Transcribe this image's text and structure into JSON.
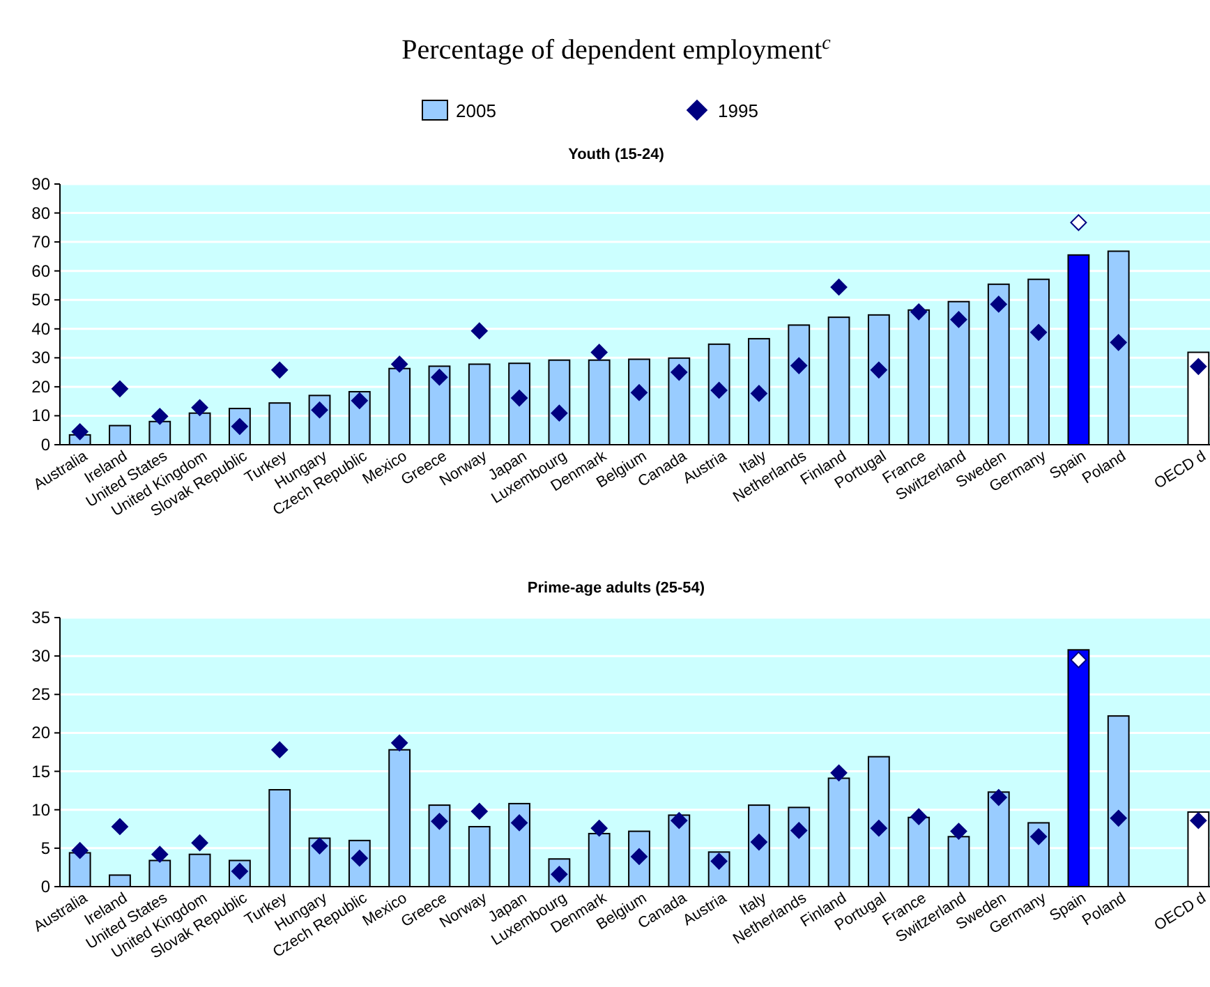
{
  "chart_data": [
    {
      "type": "bar",
      "title": "Percentage of dependent employment$^{c}$",
      "subtitle": "Youth (15-24)",
      "legend": "top",
      "grid": "y",
      "marker": "diamond",
      "categories": [
        "Australia",
        "Ireland",
        "United States",
        "United Kingdom",
        "Slovak Republic",
        "Turkey",
        "Hungary",
        "Czech Republic",
        "Mexico",
        "Greece",
        "Norway",
        "Japan",
        "Luxembourg",
        "Denmark",
        "Belgium",
        "Canada",
        "Austria",
        "Italy",
        "Netherlands",
        "Finland",
        "Portugal",
        "France",
        "Switzerland",
        "Sweden",
        "Germany",
        "Spain",
        "Poland",
        null,
        "OECD  d"
      ],
      "ylim": [
        0,
        90
      ],
      "yticks": [
        0,
        10,
        20,
        30,
        40,
        50,
        60,
        70,
        80,
        90
      ],
      "series": [
        {
          "name": "2005",
          "color": "#99ccff",
          "colors": [
            "#99ccff",
            "#99ccff",
            "#99ccff",
            "#99ccff",
            "#99ccff",
            "#99ccff",
            "#99ccff",
            "#99ccff",
            "#99ccff",
            "#99ccff",
            "#99ccff",
            "#99ccff",
            "#99ccff",
            "#99ccff",
            "#99ccff",
            "#99ccff",
            "#99ccff",
            "#99ccff",
            "#99ccff",
            "#99ccff",
            "#99ccff",
            "#99ccff",
            "#99ccff",
            "#99ccff",
            "#99ccff",
            "#0000ff",
            "#99ccff",
            null,
            "#ffffff"
          ],
          "values": [
            3.4,
            6.6,
            8.0,
            10.9,
            12.5,
            14.4,
            17.0,
            18.3,
            26.3,
            27.1,
            27.8,
            28.1,
            29.2,
            29.2,
            29.5,
            29.9,
            34.7,
            36.6,
            41.3,
            44.0,
            44.8,
            46.5,
            49.4,
            55.4,
            57.1,
            65.5,
            66.8,
            null,
            31.9
          ]
        },
        {
          "name": "1995",
          "type": "scatter",
          "color": "#000080",
          "colors": [
            "#000080",
            "#000080",
            "#000080",
            "#000080",
            "#000080",
            "#000080",
            "#000080",
            "#000080",
            "#000080",
            "#000080",
            "#000080",
            "#000080",
            "#000080",
            "#000080",
            "#000080",
            "#000080",
            "#000080",
            "#000080",
            "#000080",
            "#000080",
            "#000080",
            "#000080",
            "#000080",
            "#000080",
            "#000080",
            "#ffffff",
            "#000080",
            null,
            "#000080"
          ],
          "values": [
            4.5,
            19.3,
            9.8,
            12.8,
            6.3,
            25.8,
            12.0,
            15.2,
            27.8,
            23.3,
            39.3,
            16.1,
            10.9,
            31.9,
            18.0,
            25.0,
            18.8,
            17.7,
            27.3,
            54.4,
            25.8,
            45.9,
            43.2,
            48.5,
            38.8,
            76.7,
            35.3,
            null,
            27.0
          ]
        }
      ]
    },
    {
      "type": "bar",
      "title": "Prime-age adults (25-54)",
      "grid": "y",
      "marker": "diamond",
      "categories": [
        "Australia",
        "Ireland",
        "United States",
        "United Kingdom",
        "Slovak Republic",
        "Turkey",
        "Hungary",
        "Czech Republic",
        "Mexico",
        "Greece",
        "Norway",
        "Japan",
        "Luxembourg",
        "Denmark",
        "Belgium",
        "Canada",
        "Austria",
        "Italy",
        "Netherlands",
        "Finland",
        "Portugal",
        "France",
        "Switzerland",
        "Sweden",
        "Germany",
        "Spain",
        "Poland",
        null,
        "OECD  d"
      ],
      "ylim": [
        0,
        35
      ],
      "yticks": [
        0,
        5,
        10,
        15,
        20,
        25,
        30,
        35
      ],
      "series": [
        {
          "colors": [
            "#99ccff",
            "#99ccff",
            "#99ccff",
            "#99ccff",
            "#99ccff",
            "#99ccff",
            "#99ccff",
            "#99ccff",
            "#99ccff",
            "#99ccff",
            "#99ccff",
            "#99ccff",
            "#99ccff",
            "#99ccff",
            "#99ccff",
            "#99ccff",
            "#99ccff",
            "#99ccff",
            "#99ccff",
            "#99ccff",
            "#99ccff",
            "#99ccff",
            "#99ccff",
            "#99ccff",
            "#99ccff",
            "#0000ff",
            "#99ccff",
            null,
            "#ffffff"
          ],
          "values": [
            4.4,
            1.5,
            3.4,
            4.2,
            3.4,
            12.6,
            6.3,
            6.0,
            17.8,
            10.6,
            7.8,
            10.8,
            3.6,
            6.9,
            7.2,
            9.3,
            4.5,
            10.6,
            10.3,
            14.1,
            16.9,
            9.0,
            6.5,
            12.3,
            8.3,
            30.8,
            22.2,
            null,
            9.7
          ]
        },
        {
          "type": "scatter",
          "colors": [
            "#000080",
            "#000080",
            "#000080",
            "#000080",
            "#000080",
            "#000080",
            "#000080",
            "#000080",
            "#000080",
            "#000080",
            "#000080",
            "#000080",
            "#000080",
            "#000080",
            "#000080",
            "#000080",
            "#000080",
            "#000080",
            "#000080",
            "#000080",
            "#000080",
            "#000080",
            "#000080",
            "#000080",
            "#000080",
            "#ffffff",
            "#000080",
            null,
            "#000080"
          ],
          "values": [
            4.7,
            7.8,
            4.2,
            5.7,
            2.0,
            17.8,
            5.3,
            3.7,
            18.7,
            8.5,
            9.8,
            8.3,
            1.6,
            7.6,
            3.9,
            8.6,
            3.3,
            5.8,
            7.3,
            14.8,
            7.6,
            9.1,
            7.2,
            11.6,
            6.5,
            29.5,
            8.9,
            null,
            8.6
          ]
        }
      ]
    }
  ]
}
